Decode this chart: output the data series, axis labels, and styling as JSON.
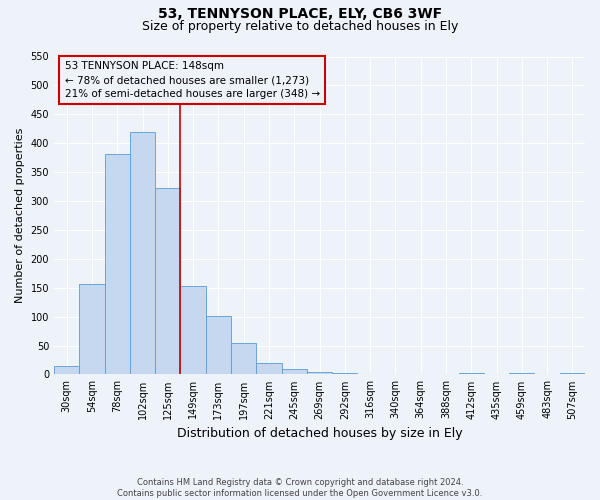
{
  "title": "53, TENNYSON PLACE, ELY, CB6 3WF",
  "subtitle": "Size of property relative to detached houses in Ely",
  "xlabel": "Distribution of detached houses by size in Ely",
  "ylabel": "Number of detached properties",
  "bar_labels": [
    "30sqm",
    "54sqm",
    "78sqm",
    "102sqm",
    "125sqm",
    "149sqm",
    "173sqm",
    "197sqm",
    "221sqm",
    "245sqm",
    "269sqm",
    "292sqm",
    "316sqm",
    "340sqm",
    "364sqm",
    "388sqm",
    "412sqm",
    "435sqm",
    "459sqm",
    "483sqm",
    "507sqm"
  ],
  "bar_heights": [
    15,
    157,
    382,
    420,
    322,
    153,
    101,
    54,
    20,
    10,
    5,
    2,
    1,
    1,
    0,
    0,
    3,
    0,
    2,
    0,
    2
  ],
  "bar_color": "#c5d8f0",
  "bar_edge_color": "#5b9bd5",
  "vline_x_index": 5,
  "vline_color": "#cc0000",
  "ylim": [
    0,
    550
  ],
  "yticks": [
    0,
    50,
    100,
    150,
    200,
    250,
    300,
    350,
    400,
    450,
    500,
    550
  ],
  "annotation_title": "53 TENNYSON PLACE: 148sqm",
  "annotation_line1": "← 78% of detached houses are smaller (1,273)",
  "annotation_line2": "21% of semi-detached houses are larger (348) →",
  "annotation_box_color": "#cc0000",
  "footer_line1": "Contains HM Land Registry data © Crown copyright and database right 2024.",
  "footer_line2": "Contains public sector information licensed under the Open Government Licence v3.0.",
  "background_color": "#eef2f9",
  "grid_color": "#ffffff",
  "title_fontsize": 10,
  "subtitle_fontsize": 9,
  "ylabel_fontsize": 8,
  "xlabel_fontsize": 9,
  "tick_fontsize": 7,
  "footer_fontsize": 6
}
